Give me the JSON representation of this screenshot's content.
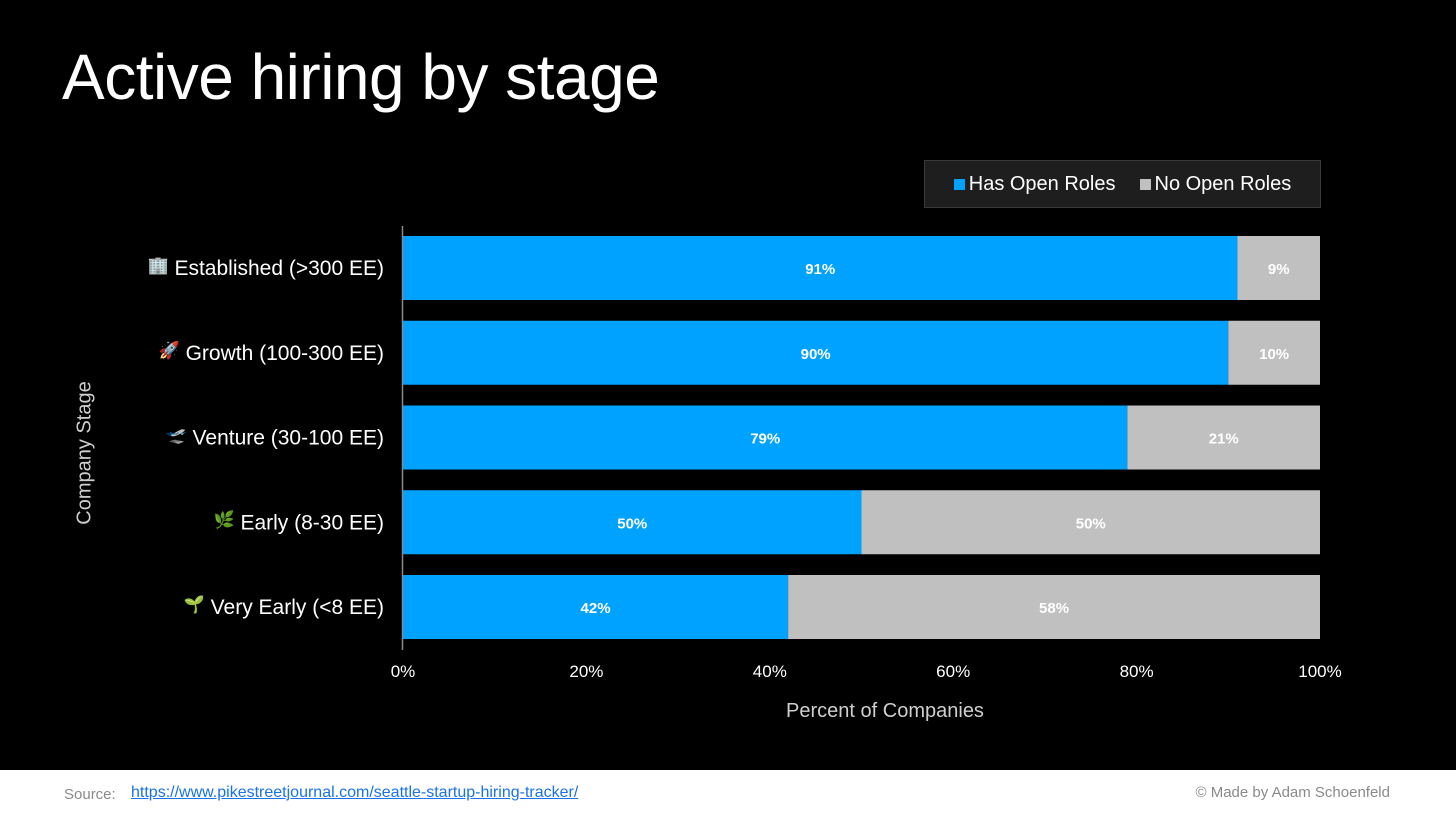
{
  "page": {
    "title": "Active hiring by stage"
  },
  "legend": {
    "items": [
      {
        "label": "Has Open Roles",
        "color": "#00a2ff"
      },
      {
        "label": "No Open Roles",
        "color": "#c0c0c0"
      }
    ]
  },
  "chart_data": {
    "type": "bar",
    "orientation": "horizontal",
    "stacked": true,
    "xlabel": "Percent of Companies",
    "ylabel": "Company Stage",
    "xlim": [
      0,
      100
    ],
    "x_ticks": [
      "0%",
      "20%",
      "40%",
      "60%",
      "80%",
      "100%"
    ],
    "categories": [
      {
        "label": "Established (>300 EE)",
        "icon": "office-building-icon",
        "icon_glyph": "🏢"
      },
      {
        "label": "Growth (100-300 EE)",
        "icon": "rocket-icon",
        "icon_glyph": "🚀"
      },
      {
        "label": "Venture (30-100 EE)",
        "icon": "airplane-icon",
        "icon_glyph": "🛫"
      },
      {
        "label": "Early (8-30 EE)",
        "icon": "herb-icon",
        "icon_glyph": "🌿"
      },
      {
        "label": "Very Early (<8 EE)",
        "icon": "seedling-icon",
        "icon_glyph": "🌱"
      }
    ],
    "series": [
      {
        "name": "Has Open Roles",
        "color": "#00a2ff",
        "values": [
          91,
          90,
          79,
          50,
          42
        ],
        "data_labels": [
          "91%",
          "90%",
          "79%",
          "50%",
          "42%"
        ]
      },
      {
        "name": "No Open Roles",
        "color": "#c0c0c0",
        "values": [
          9,
          10,
          21,
          50,
          58
        ],
        "data_labels": [
          "9%",
          "10%",
          "21%",
          "50%",
          "58%"
        ]
      }
    ],
    "grid": false,
    "legend_position": "top-right",
    "background": "#000000"
  },
  "footer": {
    "source_label": "Source:",
    "source_url": "https://www.pikestreetjournal.com/seattle-startup-hiring-tracker/",
    "credit": "© Made by Adam Schoenfeld"
  }
}
